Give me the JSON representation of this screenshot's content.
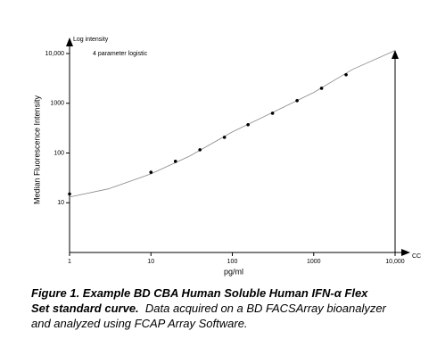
{
  "chart_data": {
    "type": "scatter",
    "annotation": "4 parameter logistic",
    "y_axis_top_label": "Log intensity",
    "ylabel": "Median Fluorescence Intensity",
    "xlabel": "pg/ml",
    "x_axis_end_label": "CC",
    "xscale": "log",
    "yscale": "log",
    "xlim": [
      1,
      10000
    ],
    "ylim": [
      1,
      10000
    ],
    "xticks": [
      1,
      10,
      100,
      1000,
      {
        "value": 10000,
        "label": "10,000"
      }
    ],
    "yticks": [
      10,
      100,
      1000,
      {
        "value": 10000,
        "label": "10,000"
      }
    ],
    "series": [
      {
        "type": "scatter",
        "color": "#000000",
        "x": [
          1,
          10,
          20,
          40,
          80,
          156,
          312,
          625,
          1250,
          2500
        ],
        "values": [
          15,
          41,
          68,
          116,
          207,
          371,
          630,
          1130,
          2000,
          3750
        ]
      },
      {
        "type": "line",
        "color": "#888888",
        "x": [
          1,
          3,
          10,
          30,
          100,
          300,
          1000,
          3000,
          10000
        ],
        "values": [
          13,
          19,
          38,
          87,
          265,
          630,
          1650,
          4800,
          11500
        ]
      }
    ]
  },
  "caption": {
    "heading": "Figure 1. Example BD CBA Human Soluble Human IFN-α Flex Set standard curve.",
    "text": "Data acquired on a BD FACSArray bioanalyzer and analyzed using FCAP Array Software."
  }
}
